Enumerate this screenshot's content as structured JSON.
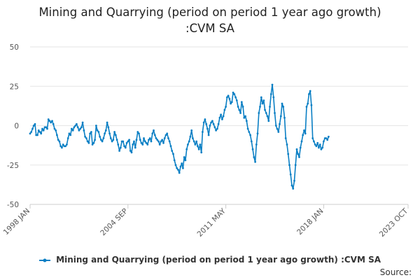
{
  "title_line1": "Mining and Quarrying (period on period 1 year ago growth)",
  "title_line2": ":CVM SA",
  "legend_label": "Mining and Quarrying (period on period 1 year ago growth) :CVM SA",
  "source_label": "Source:",
  "colors": {
    "series": "#0a7fc4",
    "grid": "#e6e6e6",
    "axis": "#cccccc"
  },
  "chart_data": {
    "type": "line",
    "title": "Mining and Quarrying (period on period 1 year ago growth) :CVM SA",
    "xlabel": "",
    "ylabel": "",
    "ylim": [
      -50,
      50
    ],
    "y_ticks": [
      50,
      25,
      0,
      -25,
      -50
    ],
    "x_ticks": [
      "1998 JAN",
      "2004 SEP",
      "2011 MAY",
      "2018 JAN",
      "2023 OCT"
    ],
    "x_range": [
      "1998 JAN",
      "2023 OCT"
    ],
    "grid": true,
    "legend_position": "bottom",
    "series": [
      {
        "name": "Mining and Quarrying (period on period 1 year ago growth) :CVM SA",
        "frequency": "monthly",
        "start": "1998 JAN",
        "values": [
          -5,
          -4,
          -2,
          0,
          1,
          -6,
          -6,
          -3,
          -4,
          -5,
          -2,
          -3,
          -1,
          -1,
          -2,
          4,
          3,
          2,
          3,
          1,
          -2,
          -3,
          -6,
          -9,
          -10,
          -13,
          -14,
          -12,
          -13,
          -13,
          -12,
          -8,
          -5,
          -6,
          -2,
          -3,
          -1,
          0,
          1,
          -1,
          -3,
          -2,
          -1,
          2,
          -3,
          -7,
          -8,
          -10,
          -11,
          -5,
          -4,
          -12,
          -11,
          -9,
          0,
          -3,
          -4,
          -7,
          -9,
          -10,
          -8,
          -5,
          -3,
          2,
          -1,
          -5,
          -8,
          -10,
          -9,
          -4,
          -6,
          -9,
          -12,
          -16,
          -14,
          -10,
          -10,
          -13,
          -14,
          -11,
          -10,
          -9,
          -16,
          -17,
          -12,
          -10,
          -14,
          -9,
          -4,
          -5,
          -9,
          -11,
          -12,
          -8,
          -10,
          -11,
          -12,
          -9,
          -8,
          -10,
          -5,
          -3,
          -6,
          -8,
          -9,
          -10,
          -12,
          -10,
          -9,
          -11,
          -8,
          -6,
          -5,
          -8,
          -10,
          -13,
          -16,
          -18,
          -22,
          -25,
          -27,
          -28,
          -30,
          -26,
          -24,
          -27,
          -20,
          -22,
          -15,
          -12,
          -10,
          -7,
          -3,
          -8,
          -10,
          -12,
          -10,
          -13,
          -15,
          -12,
          -17,
          -4,
          2,
          4,
          1,
          -2,
          -6,
          0,
          2,
          3,
          1,
          -1,
          -3,
          -2,
          1,
          5,
          7,
          4,
          6,
          10,
          12,
          18,
          19,
          17,
          14,
          15,
          21,
          20,
          18,
          16,
          12,
          10,
          8,
          15,
          12,
          5,
          6,
          3,
          -2,
          -4,
          -6,
          -10,
          -15,
          -20,
          -23,
          -12,
          -5,
          8,
          12,
          18,
          14,
          16,
          10,
          8,
          6,
          3,
          12,
          20,
          26,
          18,
          8,
          0,
          -2,
          -4,
          1,
          6,
          14,
          12,
          5,
          -8,
          -12,
          -18,
          -25,
          -31,
          -38,
          -40,
          -35,
          -25,
          -15,
          -18,
          -20,
          -14,
          -10,
          -6,
          -3,
          -5,
          12,
          14,
          20,
          22,
          13,
          -8,
          -10,
          -12,
          -13,
          -11,
          -14,
          -12,
          -15,
          -14,
          -10,
          -8,
          -8,
          -9,
          -7
        ]
      }
    ]
  }
}
